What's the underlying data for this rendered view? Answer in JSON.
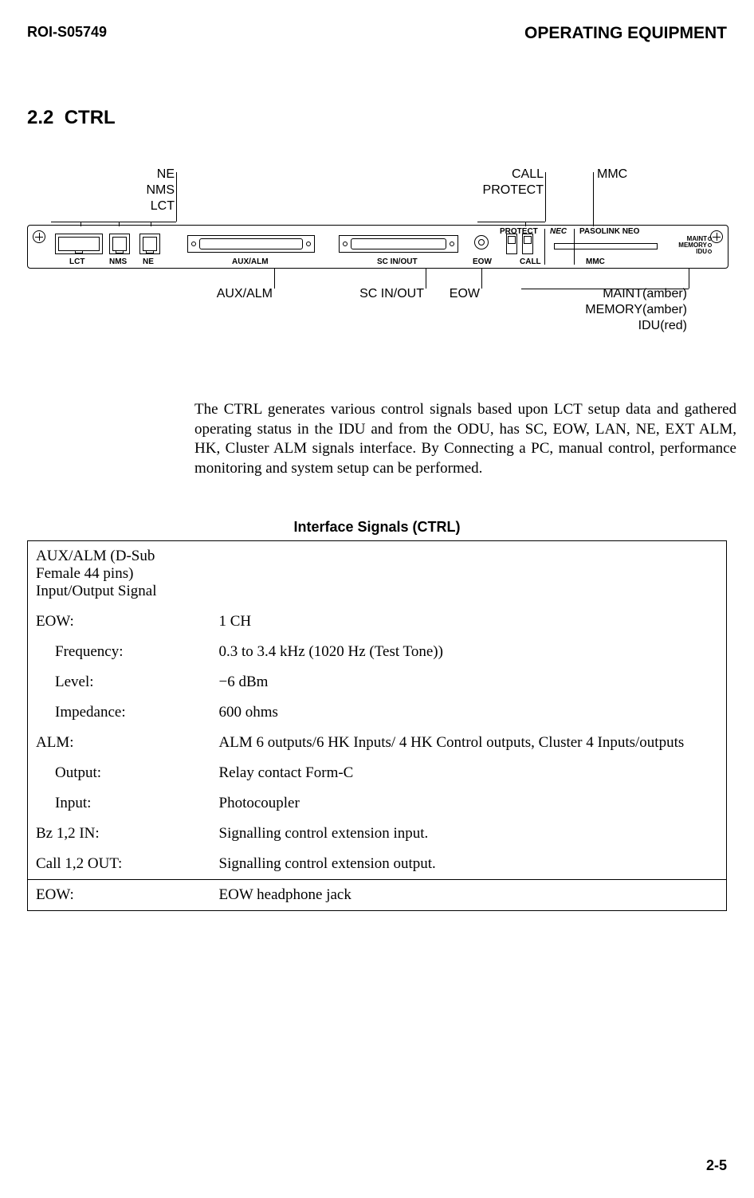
{
  "header": {
    "doc_id": "ROI-S05749",
    "title": "OPERATING EQUIPMENT"
  },
  "section": {
    "number": "2.2",
    "name": "CTRL"
  },
  "figure": {
    "left_stack": [
      "NE",
      "NMS",
      "LCT"
    ],
    "top_labels": {
      "call": "CALL",
      "protect": "PROTECT",
      "mmc": "MMC"
    },
    "bottom_labels": {
      "auxalm": "AUX/ALM",
      "scinout": "SC IN/OUT",
      "eow": "EOW",
      "maint": "MAINT(amber)",
      "memory": "MEMORY(amber)",
      "idu": "IDU(red)"
    },
    "panel_labels": {
      "lct": "LCT",
      "nms": "NMS",
      "ne": "NE",
      "auxalm": "AUX/ALM",
      "scinout": "SC IN/OUT",
      "eow": "EOW",
      "protect": "PROTECT",
      "call": "CALL",
      "nec": "NEC",
      "product": "PASOLINK NEO",
      "mmc": "MMC",
      "led_maint": "MAINT",
      "led_memory": "MEMORY",
      "led_idu": "IDU"
    }
  },
  "para": "The CTRL generates various control signals based upon LCT setup data and gathered operating status in the IDU and from the ODU, has SC, EOW, LAN, NE, EXT ALM, HK, Cluster ALM signals interface.  By Connecting a PC, manual control, performance monitoring and system setup can be performed.",
  "table": {
    "title": "Interface Signals (CTRL)",
    "rows": [
      {
        "k": "AUX/ALM (D-Sub Female 44 pins) Input/Output Signal",
        "v": "",
        "top": true,
        "multiline": true
      },
      {
        "k": "EOW:",
        "v": "1 CH"
      },
      {
        "k": "Frequency:",
        "v": " 0.3 to 3.4 kHz (1020 Hz (Test Tone))",
        "indent": true
      },
      {
        "k": "Level:",
        "v": "−6 dBm",
        "indent": true
      },
      {
        "k": "Impedance:",
        "v": "600 ohms",
        "indent": true
      },
      {
        "k": "ALM:",
        "v": "ALM 6 outputs/6 HK Inputs/ 4 HK Control outputs, Cluster 4 Inputs/outputs"
      },
      {
        "k": "Output:",
        "v": "Relay contact Form-C",
        "indent": true
      },
      {
        "k": "Input:",
        "v": "Photocoupler",
        "indent": true
      },
      {
        "k": "Bz 1,2 IN:",
        "v": "Signalling control extension input."
      },
      {
        "k": "Call 1,2 OUT:",
        "v": "Signalling control extension output."
      },
      {
        "k": "EOW:",
        "v": "EOW headphone jack",
        "top": true
      }
    ]
  },
  "page": "2-5"
}
